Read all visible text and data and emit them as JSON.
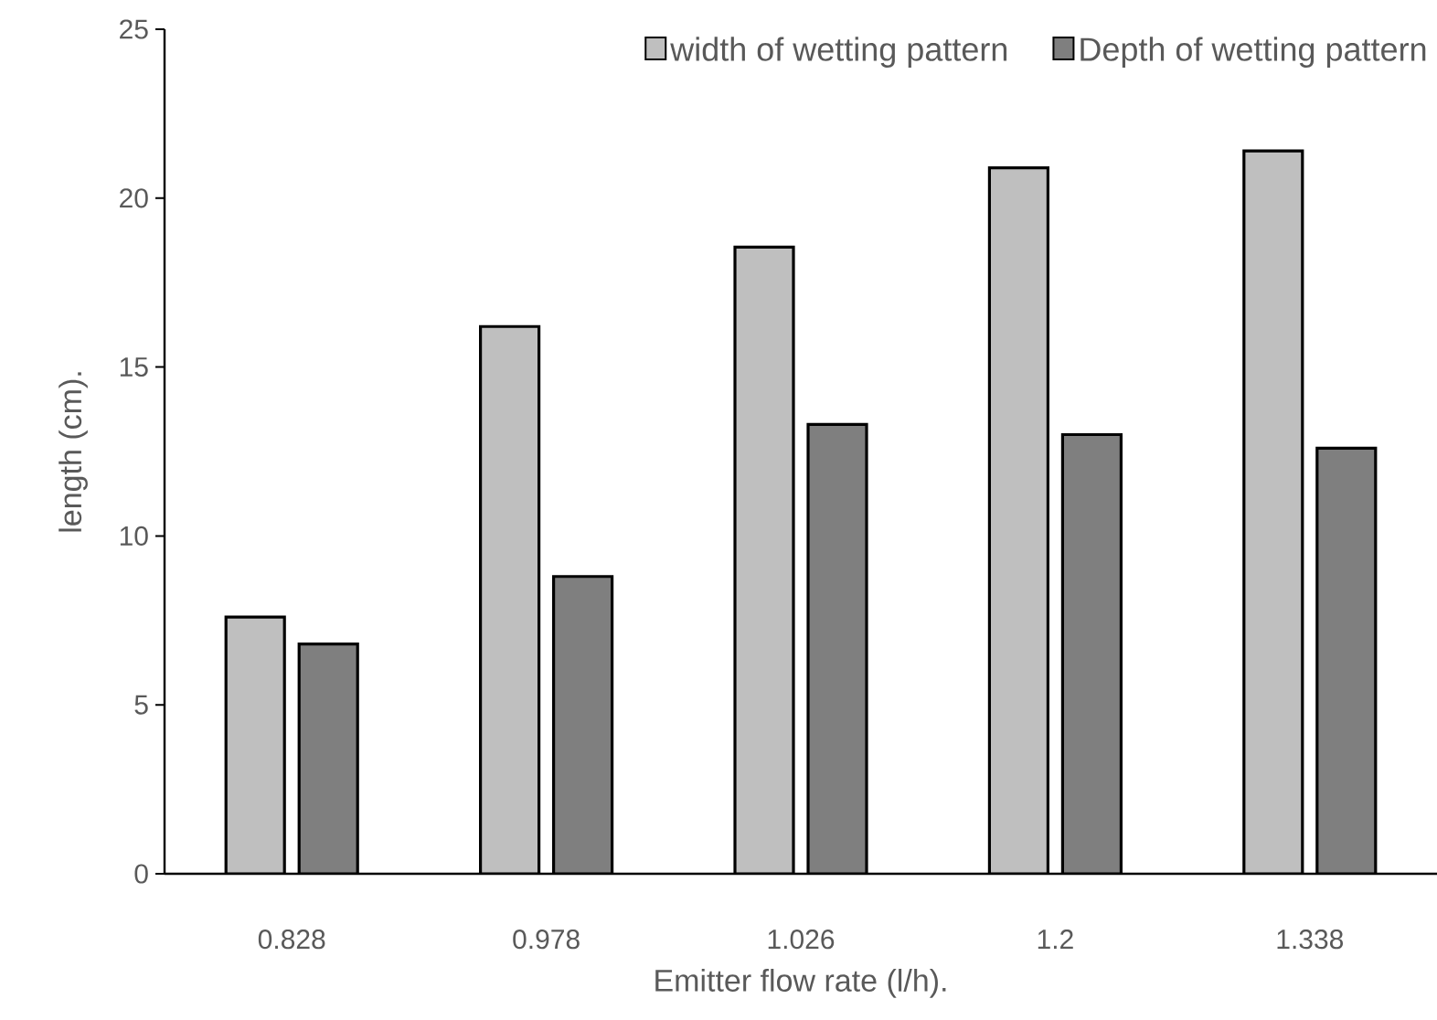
{
  "chart_data": {
    "type": "bar",
    "xlabel": "Emitter flow rate (l/h).",
    "ylabel": "length (cm).",
    "categories": [
      "0.828",
      "0.978",
      "1.026",
      "1.2",
      "1.338"
    ],
    "series": [
      {
        "name": "width of wetting pattern",
        "color": "#bfbfbf",
        "values": [
          7.6,
          16.2,
          18.55,
          20.9,
          21.4
        ]
      },
      {
        "name": "Depth of wetting pattern",
        "color": "#7f7f7f",
        "values": [
          6.8,
          8.8,
          13.3,
          13.0,
          12.6
        ]
      }
    ],
    "ylim": [
      0,
      25
    ],
    "yticks": [
      0,
      5,
      10,
      15,
      20,
      25
    ],
    "legend": "top right"
  }
}
